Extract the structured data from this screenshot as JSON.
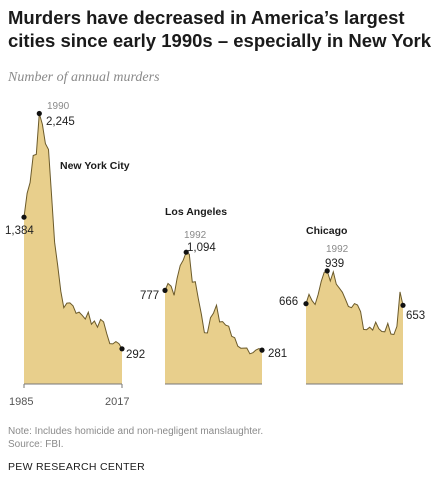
{
  "title": "Murders have decreased in America’s largest cities since early 1990s – especially in New York",
  "subtitle": "Number of annual murders",
  "note": "Note: Includes homicide and non-negligent manslaughter.",
  "source": "Source: FBI.",
  "brand": "PEW RESEARCH CENTER",
  "colors": {
    "fill": "#e8cf8c",
    "line": "#6b5a2a",
    "dot": "#111111",
    "axis": "#777777"
  },
  "chart_data": [
    {
      "type": "area",
      "name": "New York City",
      "x_start": 1985,
      "x_end": 2017,
      "x_tick_labels": [
        "1985",
        "2017"
      ],
      "values": [
        1384,
        1582,
        1672,
        1896,
        1905,
        2245,
        2154,
        1995,
        1946,
        1561,
        1177,
        983,
        770,
        633,
        671,
        673,
        649,
        587,
        597,
        570,
        539,
        596,
        496,
        523,
        471,
        536,
        515,
        419,
        335,
        333,
        352,
        335,
        292
      ],
      "annotations": [
        {
          "year": "1990",
          "label": "2,245"
        },
        {
          "label": "1,384"
        },
        {
          "label": "292"
        }
      ]
    },
    {
      "type": "area",
      "name": "Los Angeles",
      "x_start": 1985,
      "x_end": 2017,
      "values": [
        777,
        834,
        812,
        736,
        877,
        983,
        1027,
        1094,
        1076,
        845,
        849,
        709,
        578,
        426,
        423,
        550,
        588,
        654,
        515,
        518,
        489,
        480,
        396,
        384,
        314,
        297,
        298,
        299,
        251,
        260,
        282,
        294,
        281
      ],
      "annotations": [
        {
          "year": "1992",
          "label": "1,094"
        },
        {
          "label": "777"
        },
        {
          "label": "281"
        }
      ]
    },
    {
      "type": "area",
      "name": "Chicago",
      "x_start": 1985,
      "x_end": 2017,
      "values": [
        666,
        744,
        691,
        660,
        742,
        851,
        927,
        939,
        855,
        931,
        828,
        796,
        761,
        704,
        643,
        633,
        667,
        656,
        601,
        453,
        451,
        471,
        447,
        513,
        459,
        436,
        433,
        503,
        415,
        411,
        478,
        764,
        653
      ],
      "annotations": [
        {
          "year": "1992",
          "label": "939"
        },
        {
          "label": "666"
        },
        {
          "label": "653"
        }
      ]
    }
  ]
}
